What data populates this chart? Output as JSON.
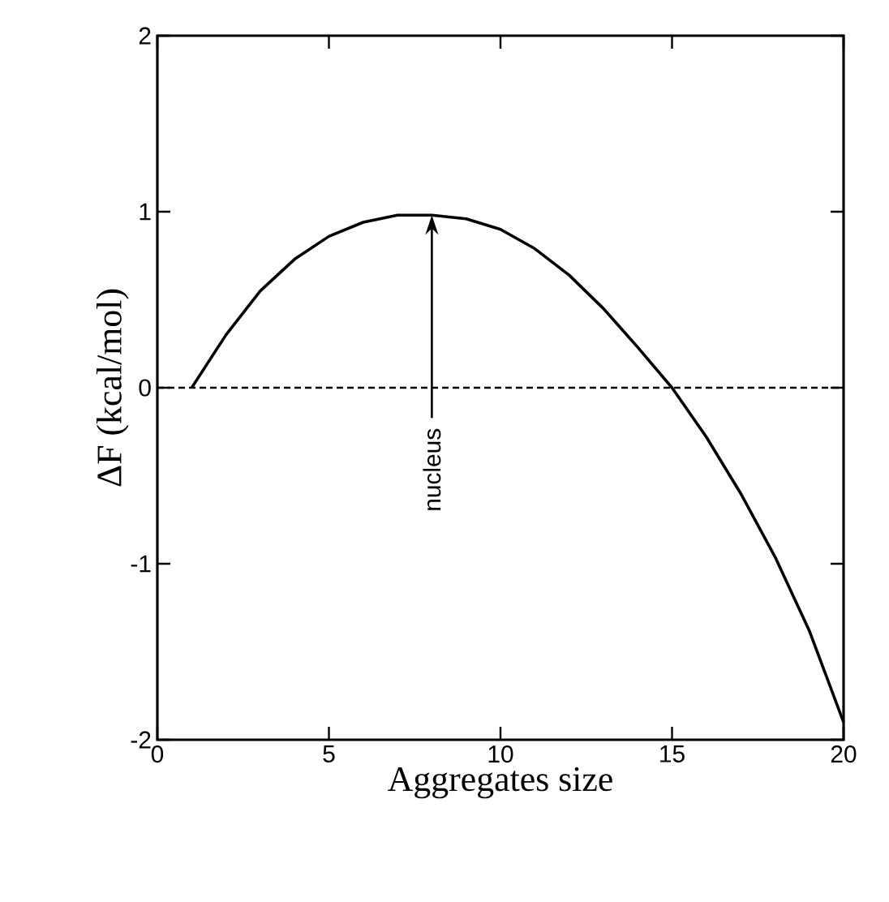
{
  "chart_data": {
    "type": "line",
    "xlabel": "Aggregates size",
    "ylabel": "ΔF (kcal/mol)",
    "x": [
      1,
      2,
      3,
      4,
      5,
      6,
      7,
      8,
      9,
      10,
      11,
      12,
      13,
      14,
      15,
      16,
      17,
      18,
      19,
      20
    ],
    "series": [
      {
        "color": "#000000",
        "values": [
          0,
          0.3,
          0.55,
          0.73,
          0.86,
          0.94,
          0.98,
          0.98,
          0.96,
          0.9,
          0.79,
          0.64,
          0.45,
          0.23,
          0,
          -0.28,
          -0.6,
          -0.96,
          -1.38,
          -1.9
        ]
      }
    ],
    "xlim": [
      0,
      20
    ],
    "ylim": [
      -2,
      2
    ],
    "xticks": [
      0,
      5,
      10,
      15,
      20
    ],
    "yticks": [
      -2,
      -1,
      0,
      1,
      2
    ],
    "ref_lines": [
      {
        "axis": "y",
        "value": 0,
        "line_style": "dashed",
        "color": "#000000"
      }
    ],
    "annotations": [
      {
        "text": "nucleus",
        "x": 8,
        "y": 0.98
      }
    ],
    "grid": false,
    "marker": "none",
    "line_style": "solid"
  }
}
